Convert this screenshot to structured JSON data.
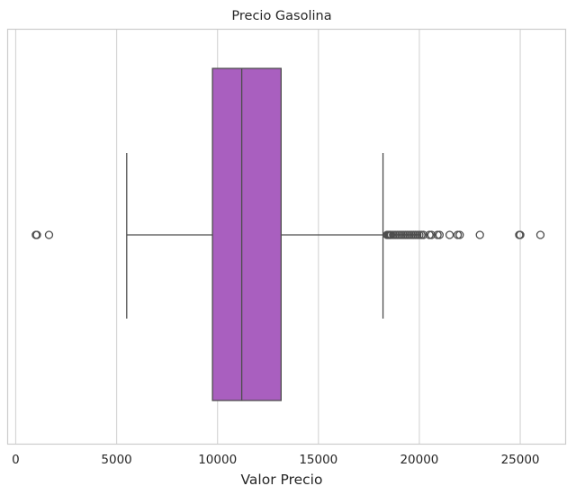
{
  "chart_data": {
    "type": "boxplot",
    "title": "Precio Gasolina",
    "xlabel": "Valor Precio",
    "ylabel": "",
    "xlim": [
      -400,
      27250
    ],
    "xticks": [
      0,
      5000,
      10000,
      15000,
      20000,
      25000
    ],
    "xtick_labels": [
      "0",
      "5000",
      "10000",
      "15000",
      "20000",
      "25000"
    ],
    "grid": "vertical",
    "orientation": "horizontal",
    "box": {
      "whisker_low": 5500,
      "q1": 9750,
      "median": 11200,
      "q3": 13150,
      "whisker_high": 18200
    },
    "outliers": [
      1000,
      1050,
      1650,
      18400,
      18450,
      18500,
      18550,
      18600,
      18700,
      18800,
      18900,
      19000,
      19100,
      19200,
      19300,
      19400,
      19500,
      19600,
      19700,
      19800,
      19900,
      20000,
      20100,
      20200,
      20500,
      20600,
      20900,
      21000,
      21500,
      21900,
      22000,
      23000,
      24950,
      25000,
      26000
    ],
    "colors": {
      "box_fill": "#a95fbf",
      "line": "#4d4d4d",
      "grid": "#d6d6d6",
      "frame": "#cccccc"
    }
  }
}
